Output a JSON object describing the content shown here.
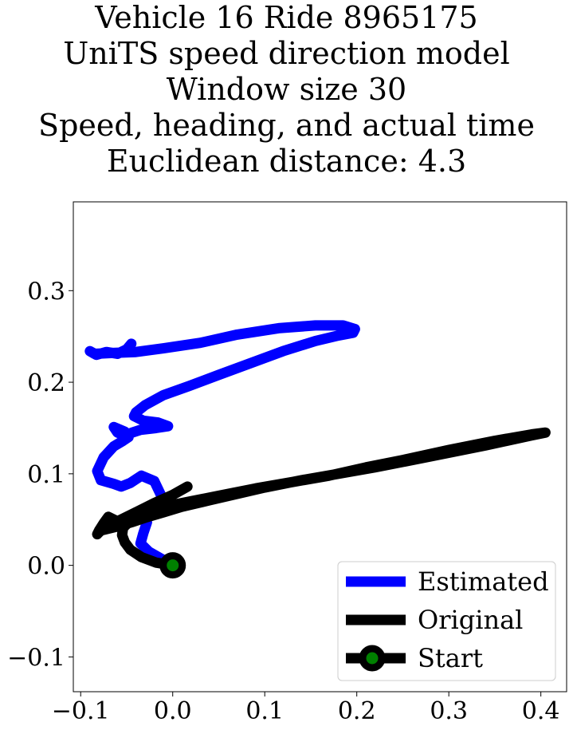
{
  "chart_data": {
    "type": "line",
    "title_lines": [
      "Vehicle 16 Ride 8965175",
      "UniTS speed direction model",
      "Window size 30",
      "Speed, heading, and actual time",
      "Euclidean distance: 4.3"
    ],
    "xlim": [
      -0.108,
      0.428
    ],
    "ylim": [
      -0.138,
      0.397
    ],
    "xticks": [
      -0.1,
      0.0,
      0.1,
      0.2,
      0.3,
      0.4
    ],
    "xtick_labels": [
      "−0.1",
      "0.0",
      "0.1",
      "0.2",
      "0.3",
      "0.4"
    ],
    "yticks": [
      -0.1,
      0.0,
      0.1,
      0.2,
      0.3
    ],
    "ytick_labels": [
      "−0.1",
      "0.0",
      "0.1",
      "0.2",
      "0.3"
    ],
    "legend_position": "lower right",
    "series": [
      {
        "name": "Estimated",
        "color": "#0000ff",
        "x": [
          0.0,
          -0.012,
          -0.026,
          -0.035,
          -0.032,
          -0.028,
          -0.033,
          -0.018,
          -0.012,
          -0.02,
          -0.034,
          -0.046,
          -0.056,
          -0.064,
          -0.078,
          -0.082,
          -0.075,
          -0.064,
          -0.054,
          -0.048,
          -0.052,
          -0.064,
          -0.06,
          -0.052,
          -0.044,
          -0.035,
          -0.018,
          -0.005,
          -0.016,
          -0.032,
          -0.042,
          -0.04,
          -0.03,
          -0.01,
          0.018,
          0.05,
          0.085,
          0.12,
          0.155,
          0.18,
          0.196,
          0.198,
          0.185,
          0.155,
          0.115,
          0.07,
          0.03,
          -0.01,
          -0.04,
          -0.065,
          -0.085,
          -0.09,
          -0.083,
          -0.072,
          -0.06,
          -0.05,
          -0.045
        ],
        "y": [
          0.0,
          0.007,
          0.015,
          0.024,
          0.035,
          0.047,
          0.058,
          0.062,
          0.075,
          0.092,
          0.098,
          0.09,
          0.086,
          0.089,
          0.093,
          0.103,
          0.118,
          0.13,
          0.136,
          0.14,
          0.146,
          0.151,
          0.145,
          0.142,
          0.145,
          0.148,
          0.15,
          0.152,
          0.156,
          0.158,
          0.163,
          0.167,
          0.175,
          0.186,
          0.196,
          0.208,
          0.221,
          0.234,
          0.245,
          0.251,
          0.254,
          0.258,
          0.262,
          0.262,
          0.259,
          0.252,
          0.243,
          0.237,
          0.233,
          0.232,
          0.231,
          0.234,
          0.23,
          0.233,
          0.231,
          0.236,
          0.242
        ]
      },
      {
        "name": "Original",
        "color": "#000000",
        "x": [
          0.0,
          -0.018,
          -0.034,
          -0.046,
          -0.052,
          -0.055,
          -0.054,
          -0.048,
          -0.04,
          -0.03,
          -0.02,
          -0.01,
          0.0,
          0.02,
          0.05,
          0.09,
          0.13,
          0.17,
          0.21,
          0.25,
          0.3,
          0.35,
          0.39,
          0.405,
          0.39,
          0.34,
          0.28,
          0.22,
          0.18,
          0.14,
          0.1,
          0.07,
          0.04,
          0.01,
          -0.01,
          -0.03,
          -0.045,
          -0.058,
          -0.07,
          -0.078,
          -0.082,
          -0.08,
          -0.075,
          -0.07,
          -0.06,
          -0.04,
          -0.02,
          0.0,
          0.016
        ],
        "y": [
          0.0,
          0.003,
          0.009,
          0.017,
          0.025,
          0.033,
          0.041,
          0.047,
          0.052,
          0.057,
          0.06,
          0.063,
          0.066,
          0.07,
          0.076,
          0.084,
          0.091,
          0.098,
          0.107,
          0.115,
          0.126,
          0.136,
          0.143,
          0.145,
          0.142,
          0.131,
          0.119,
          0.107,
          0.1,
          0.093,
          0.085,
          0.078,
          0.071,
          0.064,
          0.058,
          0.052,
          0.047,
          0.043,
          0.04,
          0.038,
          0.034,
          0.038,
          0.046,
          0.053,
          0.048,
          0.058,
          0.068,
          0.077,
          0.086
        ]
      }
    ],
    "start_marker": {
      "name": "Start",
      "x": 0.0,
      "y": 0.0,
      "edge_color": "#000000",
      "face_color": "#008000"
    }
  }
}
